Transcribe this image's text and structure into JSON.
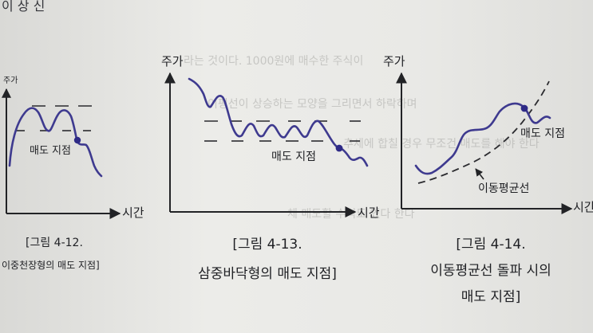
{
  "top_fragment": "이 상 신",
  "background_text": [
    "라는 것이다. 1000원에 매수한 주식이",
    "이평선이 상승하는 모양을 그리면서 하락하며",
    "추세에 합칠 경우 무조건 매도를 해야 한다",
    "체 매도할 수익도 있다 한다"
  ],
  "figures": {
    "fig12": {
      "y_label": "주가",
      "x_label": "시간",
      "sell_label": "매도 지점",
      "caption_line1": "[그림 4-12.",
      "caption_line2": "이중천장형의 매도 지점]"
    },
    "fig13": {
      "y_label": "주가",
      "x_label": "시간",
      "sell_label": "매도 지점",
      "caption_line1": "[그림 4-13.",
      "caption_line2": "삼중바닥형의 매도 지점]"
    },
    "fig14": {
      "y_label": "주가",
      "x_label": "시간",
      "sell_label": "매도 지점",
      "ma_label": "이동평균선",
      "caption_line1": "[그림 4-14.",
      "caption_line2": "이동평균선 돌파 시의",
      "caption_line3": "매도 지점]"
    }
  },
  "colors": {
    "price_line": "#3e3a8f",
    "axis": "#222326",
    "text": "#1f2024",
    "marker": "#2e2a86"
  }
}
